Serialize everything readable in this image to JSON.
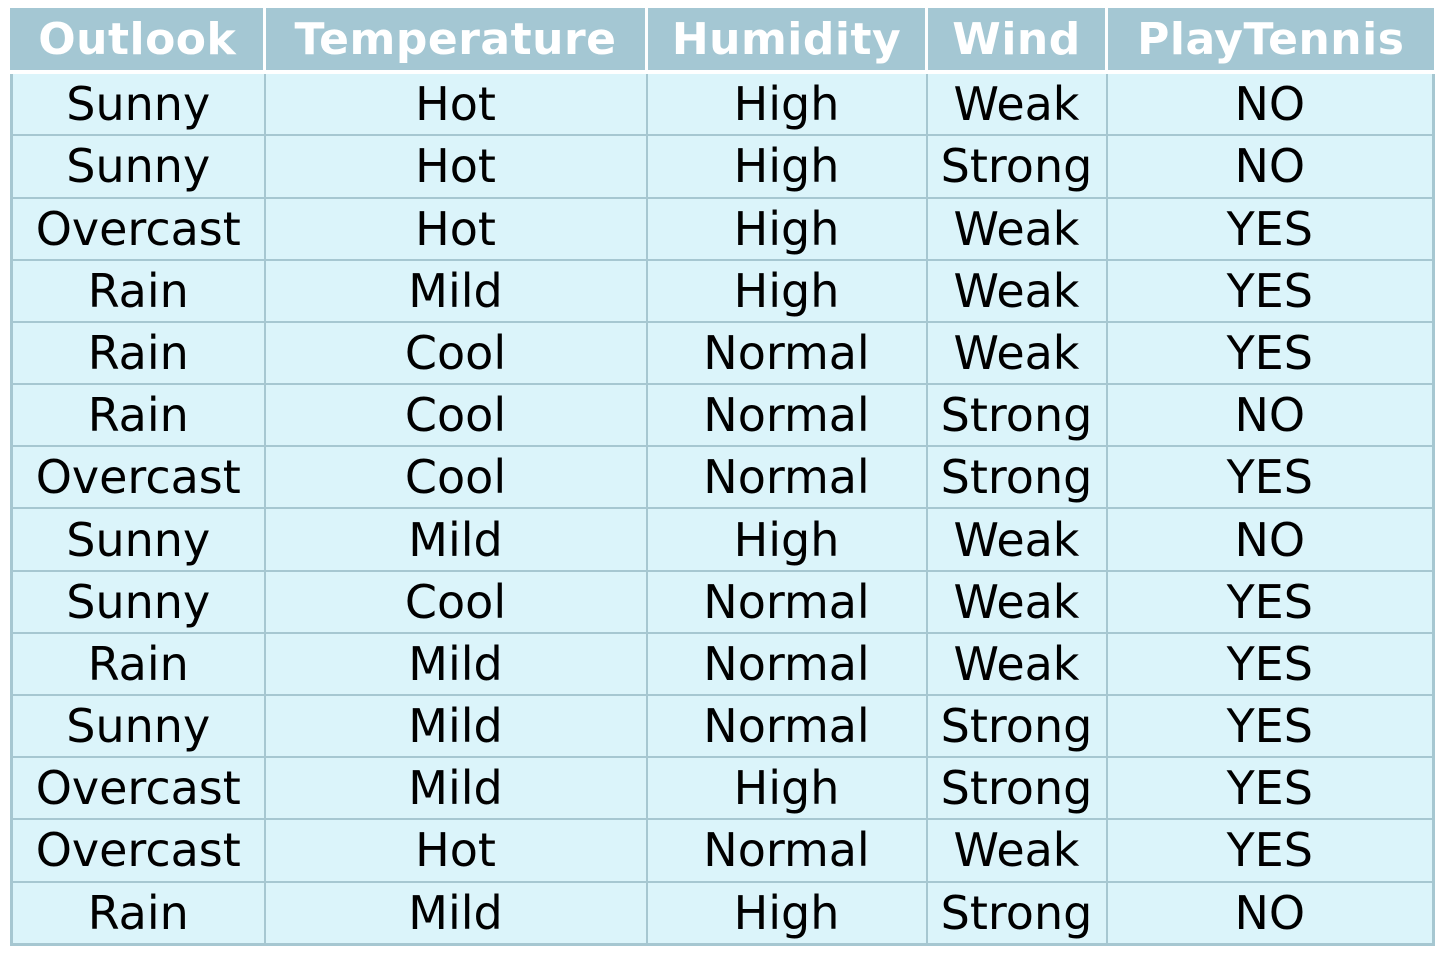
{
  "table": {
    "headers": [
      "Outlook",
      "Temperature",
      "Humidity",
      "Wind",
      "PlayTennis"
    ],
    "rows": [
      [
        "Sunny",
        "Hot",
        "High",
        "Weak",
        "NO"
      ],
      [
        "Sunny",
        "Hot",
        "High",
        "Strong",
        "NO"
      ],
      [
        "Overcast",
        "Hot",
        "High",
        "Weak",
        "YES"
      ],
      [
        "Rain",
        "Mild",
        "High",
        "Weak",
        "YES"
      ],
      [
        "Rain",
        "Cool",
        "Normal",
        "Weak",
        "YES"
      ],
      [
        "Rain",
        "Cool",
        "Normal",
        "Strong",
        "NO"
      ],
      [
        "Overcast",
        "Cool",
        "Normal",
        "Strong",
        "YES"
      ],
      [
        "Sunny",
        "Mild",
        "High",
        "Weak",
        "NO"
      ],
      [
        "Sunny",
        "Cool",
        "Normal",
        "Weak",
        "YES"
      ],
      [
        "Rain",
        "Mild",
        "Normal",
        "Weak",
        "YES"
      ],
      [
        "Sunny",
        "Mild",
        "Normal",
        "Strong",
        "YES"
      ],
      [
        "Overcast",
        "Mild",
        "High",
        "Strong",
        "YES"
      ],
      [
        "Overcast",
        "Hot",
        "Normal",
        "Weak",
        "YES"
      ],
      [
        "Rain",
        "Mild",
        "High",
        "Strong",
        "NO"
      ]
    ]
  },
  "colors": {
    "header_bg": "#a4c7d3",
    "header_text": "#ffffff",
    "cell_bg": "#dbf4fa",
    "grid": "#a6c7d1",
    "cell_text": "#000000"
  }
}
